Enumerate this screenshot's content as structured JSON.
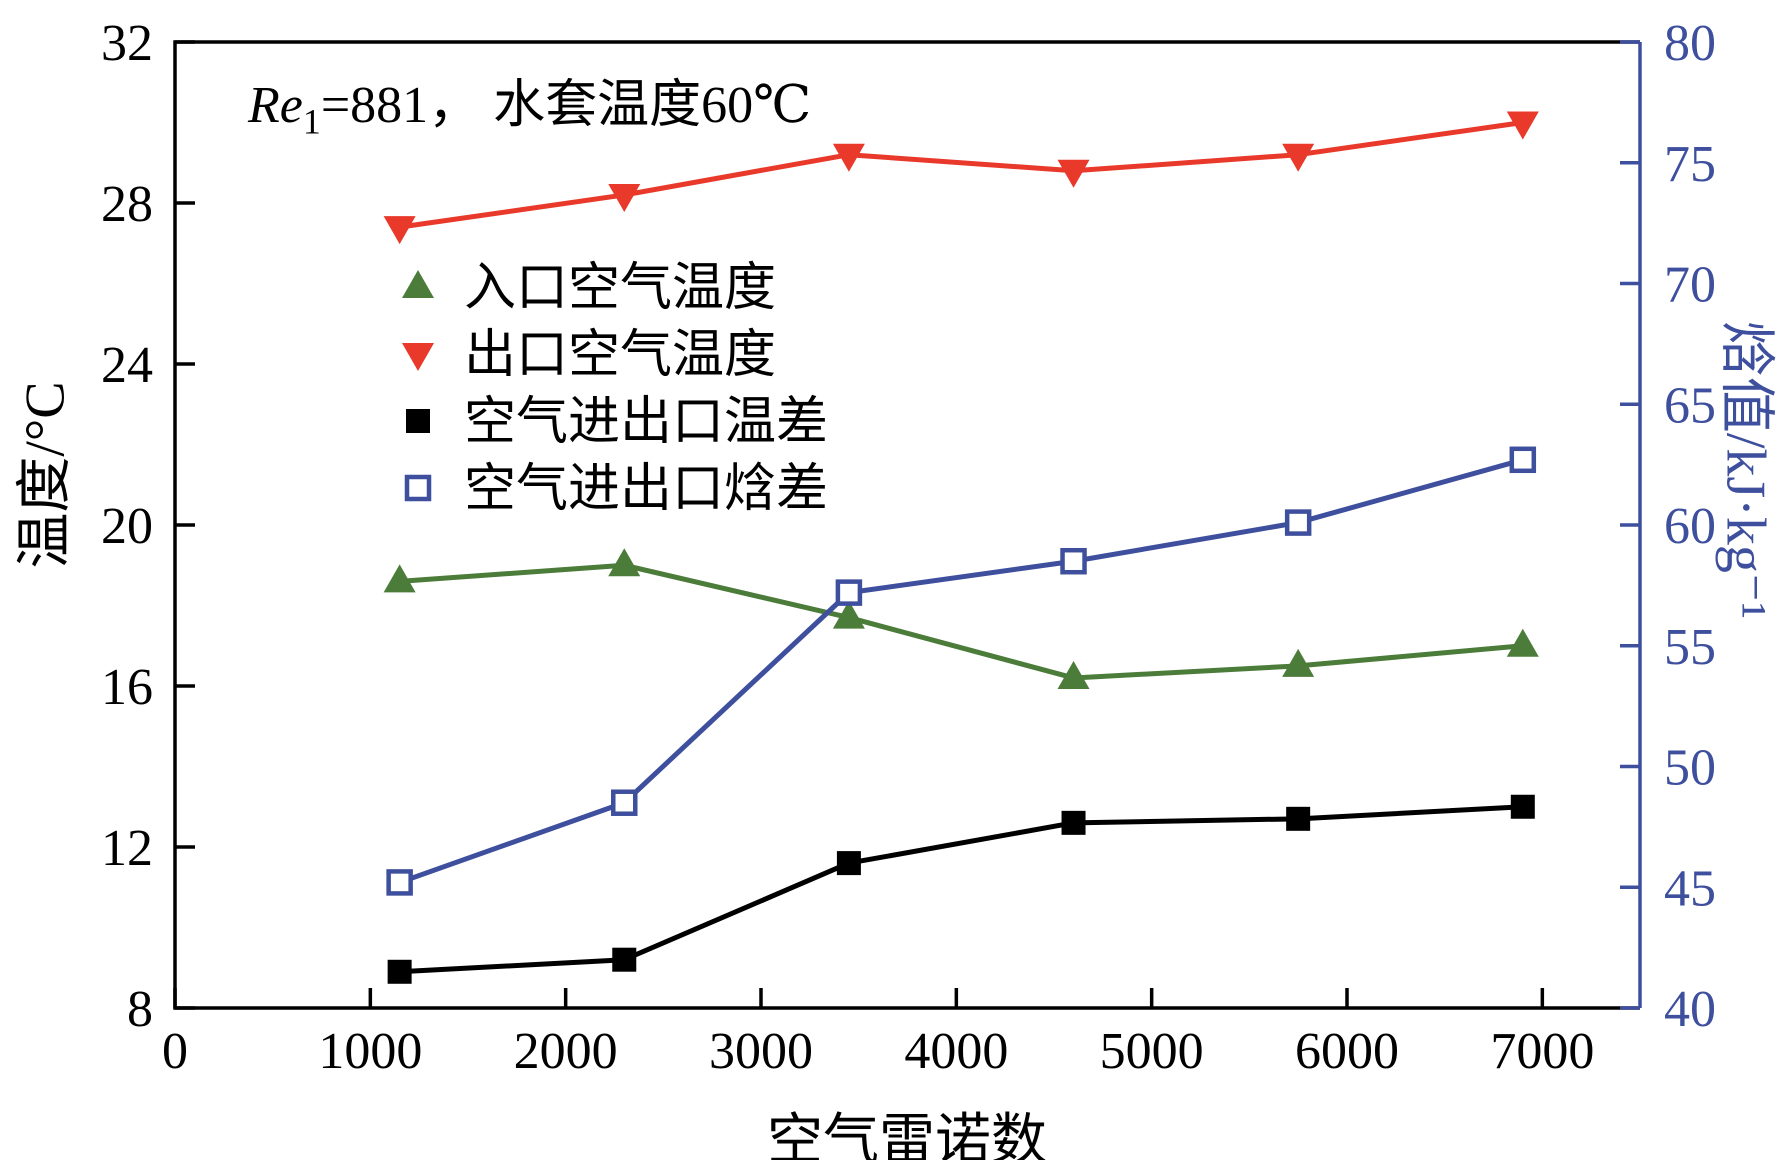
{
  "chart_data": {
    "type": "line",
    "annotation": {
      "re": "Re",
      "sub": "1",
      "rest": "=881， 水套温度60℃"
    },
    "xlabel": "空气雷诺数",
    "ylabel_left": "温度/°C",
    "ylabel_right": "焓值/kJ·kg⁻¹",
    "xlim": [
      0,
      7500
    ],
    "x_ticks": [
      0,
      1000,
      2000,
      3000,
      4000,
      5000,
      6000,
      7000
    ],
    "ylim_left": [
      8,
      32
    ],
    "y_ticks_left": [
      8,
      12,
      16,
      20,
      24,
      28,
      32
    ],
    "ylim_right": [
      40,
      80
    ],
    "y_ticks_right": [
      40,
      45,
      50,
      55,
      60,
      65,
      70,
      75,
      80
    ],
    "x": [
      1150,
      2300,
      3450,
      4600,
      5750,
      6900
    ],
    "series": [
      {
        "id": "inlet-air-temperature",
        "name": "入口空气温度",
        "axis": "left",
        "marker": "triangle-up",
        "color": "#4c7c3a",
        "values": [
          18.6,
          19.0,
          17.7,
          16.2,
          16.5,
          17.0
        ]
      },
      {
        "id": "outlet-air-temperature",
        "name": "出口空气温度",
        "axis": "left",
        "marker": "triangle-down",
        "color": "#e8392b",
        "values": [
          27.4,
          28.2,
          29.2,
          28.8,
          29.2,
          30.0
        ]
      },
      {
        "id": "air-inlet-outlet-temp-difference",
        "name": "空气进出口温差",
        "axis": "left",
        "marker": "square-filled",
        "color": "#000000",
        "values": [
          8.9,
          9.2,
          11.6,
          12.6,
          12.7,
          13.0
        ]
      },
      {
        "id": "air-inlet-outlet-enthalpy-difference",
        "name": "空气进出口焓差",
        "axis": "right",
        "marker": "square-open",
        "color": "#3e4f9e",
        "values": [
          45.2,
          48.5,
          57.2,
          58.5,
          60.1,
          62.7
        ]
      }
    ],
    "colors": {
      "left_axis": "#000000",
      "right_axis": "#3e4f9e",
      "background": "#ffffff"
    },
    "legend_position": "upper-left-inside",
    "grid": false
  }
}
